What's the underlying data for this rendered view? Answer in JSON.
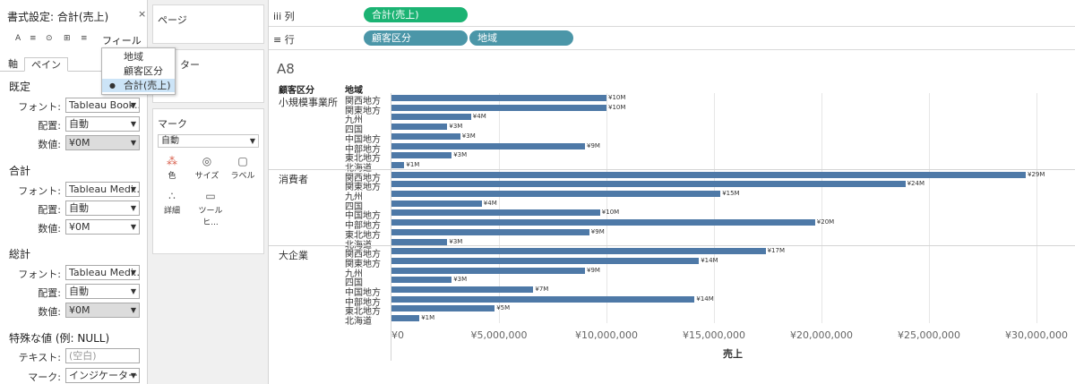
{
  "format_pane": {
    "title": "書式設定: 合計(売上)",
    "close_glyph": "×",
    "toolbar": {
      "icons": [
        "A",
        "≡",
        "⊙",
        "⊞",
        "≡"
      ],
      "field_dropdown": "フィールド▾"
    },
    "tabs": [
      "軸",
      "ペイン"
    ],
    "sections": [
      {
        "title": "既定",
        "font": "Tableau Book...",
        "alignment": "自動",
        "number": "¥0M"
      },
      {
        "title": "合計",
        "font": "Tableau Medi...",
        "alignment": "自動",
        "number": "¥0M"
      },
      {
        "title": "総計",
        "font": "Tableau Medi...",
        "alignment": "自動",
        "number": "¥0M"
      }
    ],
    "labels": {
      "font": "フォント:",
      "alignment": "配置:",
      "number": "数値:"
    },
    "special_title": "特殊な値 (例: NULL)",
    "special_text_label": "テキスト:",
    "special_text_placeholder": "(空白)",
    "special_marks_label": "マーク:",
    "special_marks_value": "インジケーターに..."
  },
  "field_menu": {
    "items": [
      "地域",
      "顧客区分",
      "合計(売上)"
    ],
    "selected_index": 2
  },
  "cards": {
    "pages": "ページ",
    "filters": "ター",
    "marks": "マーク",
    "marks_type": "自動",
    "mark_buttons": [
      "色",
      "サイズ",
      "ラベル",
      "詳細",
      "ツールヒ..."
    ]
  },
  "shelves": {
    "columns_label": "iii 列",
    "rows_label": "≡ 行",
    "columns_pills": [
      "合計(売上)"
    ],
    "rows_pills": [
      "顧客区分",
      "地域"
    ]
  },
  "view": {
    "sheet_title": "A8",
    "row_headers": [
      "顧客区分",
      "地域"
    ]
  },
  "chart_data": {
    "type": "bar",
    "orientation": "horizontal",
    "xlabel": "売上",
    "xlim": [
      0,
      31000000
    ],
    "x_ticks": [
      "¥0",
      "¥5,000,000",
      "¥10,000,000",
      "¥15,000,000",
      "¥20,000,000",
      "¥25,000,000",
      "¥30,000,000"
    ],
    "x_tick_values": [
      0,
      5000000,
      10000000,
      15000000,
      20000000,
      25000000,
      30000000
    ],
    "bar_color": "#4e79a7",
    "groups": [
      {
        "segment": "小規模事業所",
        "regions": [
          "関西地方",
          "関東地方",
          "九州",
          "四国",
          "中国地方",
          "中部地方",
          "東北地方",
          "北海道"
        ],
        "values": [
          10000000,
          10000000,
          3700000,
          2600000,
          3200000,
          9000000,
          2800000,
          600000
        ],
        "labels": [
          "¥10M",
          "¥10M",
          "¥4M",
          "¥3M",
          "¥3M",
          "¥9M",
          "¥3M",
          "¥1M"
        ]
      },
      {
        "segment": "消費者",
        "regions": [
          "関西地方",
          "関東地方",
          "九州",
          "四国",
          "中国地方",
          "中部地方",
          "東北地方",
          "北海道"
        ],
        "values": [
          29500000,
          23900000,
          15300000,
          4200000,
          9700000,
          19700000,
          9200000,
          2600000
        ],
        "labels": [
          "¥29M",
          "¥24M",
          "¥15M",
          "¥4M",
          "¥10M",
          "¥20M",
          "¥9M",
          "¥3M"
        ]
      },
      {
        "segment": "大企業",
        "regions": [
          "関西地方",
          "関東地方",
          "九州",
          "四国",
          "中国地方",
          "中部地方",
          "東北地方",
          "北海道"
        ],
        "values": [
          17400000,
          14300000,
          9000000,
          2800000,
          6600000,
          14100000,
          4800000,
          1300000
        ],
        "labels": [
          "¥17M",
          "¥14M",
          "¥9M",
          "¥3M",
          "¥7M",
          "¥14M",
          "¥5M",
          "¥1M"
        ]
      }
    ]
  }
}
